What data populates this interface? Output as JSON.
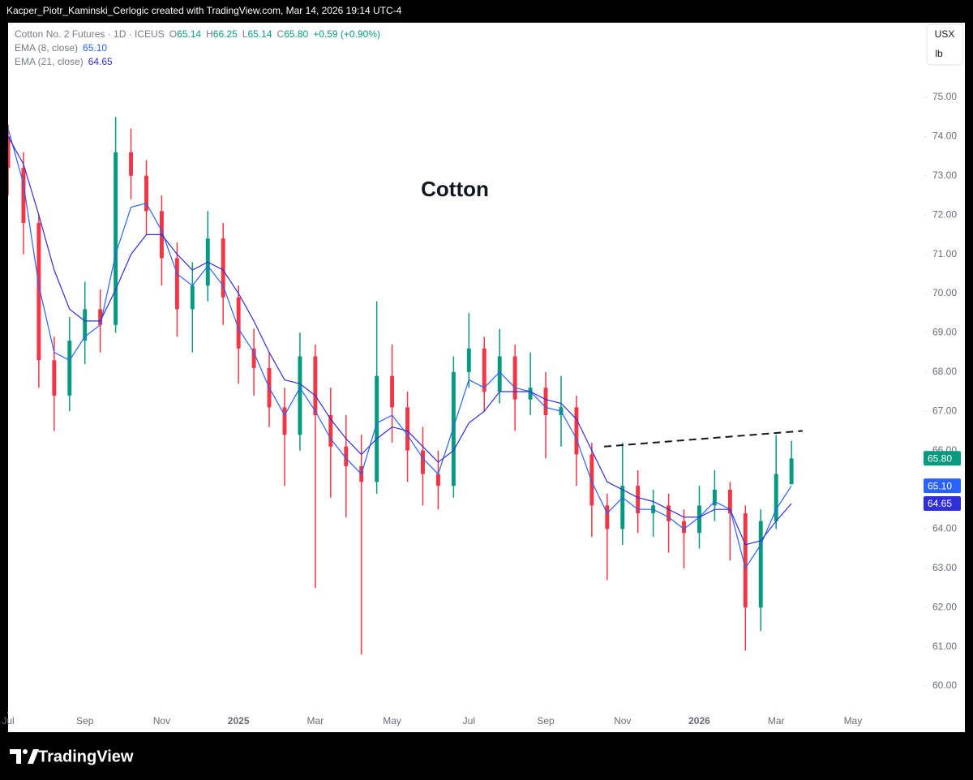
{
  "credit": "Kacper_Piotr_Kaminski_Cerlogic created with TradingView.com, Mar 14, 2026 19:14 UTC-4",
  "brand": "TradingView",
  "chart_data": {
    "type": "candlestick",
    "title": "Cotton No. 2 Futures · 1D · ICEUS",
    "quote": [
      {
        "key": "O",
        "value": "65.14"
      },
      {
        "key": "H",
        "value": "66.25"
      },
      {
        "key": "L",
        "value": "65.14"
      },
      {
        "key": "C",
        "value": "65.80"
      }
    ],
    "change": "+0.59 (+0.90%)",
    "annotation": "Cotton",
    "currency": "USX",
    "unit": "lb",
    "up_color": "#089981",
    "down_color": "#f23645",
    "x": [
      0.0,
      0.4,
      0.8,
      1.2,
      1.6,
      2.0,
      2.4,
      2.8,
      3.2,
      3.6,
      4.0,
      4.4,
      4.8,
      5.2,
      5.6,
      6.0,
      6.4,
      6.8,
      7.2,
      7.6,
      8.0,
      8.4,
      8.8,
      9.2,
      9.6,
      10.0,
      10.4,
      10.8,
      11.2,
      11.6,
      12.0,
      12.4,
      12.8,
      13.2,
      13.6,
      14.0,
      14.4,
      14.8,
      15.2,
      15.6,
      16.0,
      16.4,
      16.8,
      17.2,
      17.6,
      18.0,
      18.4,
      18.8,
      19.2,
      19.6,
      20.0,
      20.4
    ],
    "open": [
      74.0,
      73.2,
      71.8,
      68.3,
      67.4,
      68.8,
      69.6,
      69.2,
      73.6,
      73.0,
      72.1,
      70.9,
      69.6,
      70.2,
      71.4,
      69.9,
      68.6,
      68.1,
      67.1,
      66.4,
      68.4,
      66.9,
      66.1,
      65.6,
      65.2,
      67.9,
      67.1,
      66.0,
      65.4,
      65.1,
      68.0,
      68.6,
      67.5,
      68.4,
      67.3,
      67.6,
      66.9,
      67.1,
      65.9,
      64.6,
      64.0,
      65.1,
      64.4,
      64.6,
      64.2,
      63.9,
      64.6,
      65.0,
      64.4,
      62.0,
      64.2,
      65.14
    ],
    "high": [
      74.3,
      73.6,
      72.0,
      68.9,
      69.4,
      70.3,
      70.1,
      74.5,
      74.2,
      73.4,
      72.5,
      71.3,
      70.8,
      72.1,
      71.8,
      70.2,
      69.1,
      68.5,
      67.6,
      69.0,
      68.7,
      67.6,
      66.9,
      66.4,
      69.8,
      68.7,
      67.5,
      66.6,
      66.0,
      68.4,
      69.5,
      68.9,
      69.1,
      68.7,
      68.5,
      68.0,
      67.9,
      67.4,
      66.2,
      64.9,
      66.2,
      65.5,
      65.0,
      64.9,
      64.5,
      65.1,
      65.5,
      65.2,
      64.6,
      64.5,
      66.4,
      66.25
    ],
    "low": [
      72.5,
      71.0,
      67.6,
      66.5,
      67.0,
      68.2,
      68.5,
      69.0,
      72.4,
      71.5,
      70.2,
      68.9,
      68.5,
      69.8,
      69.2,
      67.7,
      67.4,
      66.6,
      65.1,
      66.0,
      62.5,
      64.8,
      64.3,
      60.8,
      64.9,
      66.2,
      65.2,
      64.6,
      64.5,
      64.8,
      67.6,
      67.0,
      67.2,
      66.5,
      66.9,
      65.8,
      66.1,
      65.1,
      63.8,
      62.7,
      63.6,
      63.9,
      63.8,
      63.4,
      63.0,
      63.5,
      64.2,
      63.2,
      60.9,
      61.4,
      64.0,
      65.14
    ],
    "close": [
      73.2,
      71.8,
      68.3,
      67.4,
      68.8,
      69.6,
      69.2,
      73.6,
      73.0,
      72.1,
      70.9,
      69.6,
      70.2,
      71.4,
      69.9,
      68.6,
      68.1,
      67.1,
      66.4,
      68.4,
      66.9,
      66.1,
      65.6,
      65.2,
      67.9,
      67.1,
      66.0,
      65.4,
      65.1,
      68.0,
      68.6,
      67.5,
      68.4,
      67.3,
      67.6,
      66.9,
      67.1,
      65.9,
      64.6,
      64.0,
      65.1,
      64.4,
      64.6,
      64.2,
      63.9,
      64.6,
      65.0,
      64.4,
      62.0,
      64.2,
      65.4,
      65.8
    ],
    "series": [
      {
        "name": "EMA (8, close)",
        "color": "#2962ff",
        "value_label": "65.10",
        "values": [
          74.2,
          72.8,
          70.2,
          68.5,
          68.3,
          68.9,
          69.2,
          71.0,
          72.2,
          72.3,
          71.6,
          70.5,
          70.2,
          70.7,
          70.2,
          69.1,
          68.5,
          67.6,
          66.9,
          67.6,
          67.0,
          66.3,
          65.8,
          65.4,
          66.7,
          66.9,
          66.4,
          65.8,
          65.4,
          66.6,
          67.8,
          67.6,
          68.0,
          67.6,
          67.5,
          67.1,
          67.0,
          66.3,
          65.2,
          64.4,
          64.8,
          64.5,
          64.5,
          64.3,
          64.0,
          64.3,
          64.7,
          64.5,
          63.0,
          63.6,
          64.5,
          65.1
        ]
      },
      {
        "name": "EMA (21, close)",
        "color": "#2f2fd8",
        "value_label": "64.65",
        "values": [
          74.0,
          73.3,
          72.0,
          70.6,
          69.6,
          69.3,
          69.3,
          70.1,
          71.0,
          71.5,
          71.5,
          71.0,
          70.6,
          70.8,
          70.6,
          70.0,
          69.3,
          68.5,
          67.8,
          67.7,
          67.4,
          66.8,
          66.3,
          65.9,
          66.3,
          66.6,
          66.5,
          66.1,
          65.7,
          66.0,
          66.7,
          67.0,
          67.5,
          67.5,
          67.5,
          67.3,
          67.2,
          66.8,
          66.0,
          65.2,
          65.0,
          64.8,
          64.7,
          64.5,
          64.3,
          64.3,
          64.5,
          64.5,
          63.6,
          63.7,
          64.2,
          64.65
        ]
      }
    ],
    "price_labels": [
      {
        "value": 65.8,
        "label": "65.80",
        "color": "#089981"
      },
      {
        "value": 65.1,
        "label": "65.10",
        "color": "#2962ff"
      },
      {
        "value": 64.65,
        "label": "64.65",
        "color": "#2f2fd8"
      }
    ],
    "trendline": {
      "x": [
        15.52,
        20.69
      ],
      "y": [
        66.1,
        66.5
      ]
    },
    "xlim": [
      0,
      23.86
    ],
    "xticks": [
      {
        "value": 0,
        "label": "Jul"
      },
      {
        "value": 2,
        "label": "Sep"
      },
      {
        "value": 4,
        "label": "Nov"
      },
      {
        "value": 6,
        "label": "2025"
      },
      {
        "value": 8,
        "label": "Mar"
      },
      {
        "value": 10,
        "label": "May"
      },
      {
        "value": 12,
        "label": "Jul"
      },
      {
        "value": 14,
        "label": "Sep"
      },
      {
        "value": 16,
        "label": "Nov"
      },
      {
        "value": 18,
        "label": "2026"
      },
      {
        "value": 20,
        "label": "Mar"
      },
      {
        "value": 22,
        "label": "May"
      }
    ],
    "ylim": [
      59.34,
      76.9
    ],
    "yticks": [
      {
        "value": 60,
        "label": "60.00"
      },
      {
        "value": 61,
        "label": "61.00"
      },
      {
        "value": 62,
        "label": "62.00"
      },
      {
        "value": 63,
        "label": "63.00"
      },
      {
        "value": 64,
        "label": "64.00"
      },
      {
        "value": 65,
        "label": "65.00"
      },
      {
        "value": 66,
        "label": "66.00"
      },
      {
        "value": 67,
        "label": "67.00"
      },
      {
        "value": 68,
        "label": "68.00"
      },
      {
        "value": 69,
        "label": "69.00"
      },
      {
        "value": 70,
        "label": "70.00"
      },
      {
        "value": 71,
        "label": "71.00"
      },
      {
        "value": 72,
        "label": "72.00"
      },
      {
        "value": 73,
        "label": "73.00"
      },
      {
        "value": 74,
        "label": "74.00"
      },
      {
        "value": 75,
        "label": "75.00"
      }
    ]
  }
}
